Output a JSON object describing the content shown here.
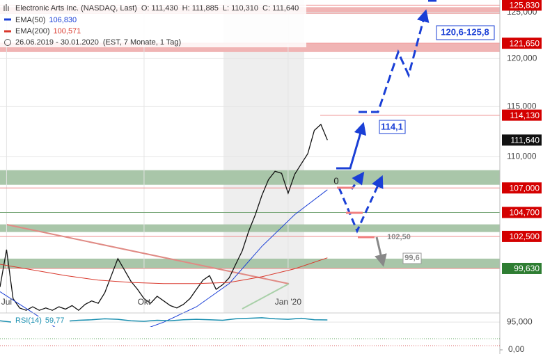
{
  "chart_data": {
    "type": "line",
    "title": "Electronic Arts Inc. (NASDAQ, Last)",
    "ohlc": [
      "O: 111,430",
      "H: 111,885",
      "L: 110,310",
      "C: 111,640"
    ],
    "period": "26.06.2019 - 30.01.2020",
    "period_note": "(EST, 7 Monate, 1 Tag)",
    "log_scale": true,
    "grid": true,
    "xlim": [
      0,
      229
    ],
    "xticks": [
      {
        "value": 3,
        "label": "Jul"
      },
      {
        "value": 66,
        "label": "Okt"
      },
      {
        "value": 132,
        "label": "Jan '20"
      }
    ],
    "ylim": [
      94600,
      126400
    ],
    "yticks": [
      {
        "value": 95000,
        "label": "95,000"
      },
      {
        "value": 110000,
        "label": "110,000"
      },
      {
        "value": 115000,
        "label": "115,000"
      },
      {
        "value": 120000,
        "label": "120,000"
      },
      {
        "value": 125000,
        "label": "125,000"
      }
    ],
    "series": [
      {
        "color": "#111111",
        "x": [
          0,
          3,
          6,
          9,
          12,
          15,
          18,
          21,
          24,
          27,
          30,
          33,
          36,
          39,
          42,
          45,
          48,
          51,
          54,
          57,
          60,
          63,
          66,
          69,
          72,
          75,
          78,
          81,
          84,
          87,
          90,
          93,
          96,
          99,
          102,
          105,
          108,
          111,
          114,
          117,
          120,
          123,
          126,
          129,
          132,
          135,
          138,
          141,
          144,
          147,
          150
        ],
        "values": [
          98000,
          101300,
          97000,
          96200,
          96000,
          96300,
          96000,
          96200,
          96000,
          96300,
          96100,
          96400,
          96000,
          96500,
          96800,
          96600,
          97500,
          99000,
          100500,
          99500,
          98500,
          97800,
          97000,
          96600,
          97200,
          96800,
          96400,
          96200,
          96500,
          97000,
          97800,
          98600,
          99000,
          97800,
          98200,
          98800,
          100000,
          101200,
          103000,
          104500,
          106300,
          107800,
          108600,
          108400,
          106500,
          108300,
          109300,
          110300,
          112600,
          113200,
          111640
        ]
      },
      {
        "name": "EMA(50)",
        "legend_value": "106,830",
        "color": "#1a3fd6",
        "x": [
          0,
          15,
          30,
          45,
          60,
          75,
          90,
          105,
          120,
          135,
          150
        ],
        "values": [
          97600,
          95800,
          94000,
          93500,
          94000,
          95000,
          96300,
          98300,
          101600,
          104500,
          106830
        ]
      },
      {
        "name": "EMA(200)",
        "legend_value": "100,571",
        "color": "#d9372b",
        "x": [
          0,
          15,
          30,
          45,
          60,
          75,
          90,
          105,
          120,
          135,
          150
        ],
        "values": [
          100000,
          99500,
          99000,
          98600,
          98400,
          98300,
          98300,
          98400,
          98900,
          99600,
          100571
        ]
      }
    ],
    "zones": [
      {
        "from": 124850,
        "to": 125600,
        "color": "#f0b4b4"
      },
      {
        "from": 120700,
        "to": 121600,
        "color": "#f0b4b4"
      },
      {
        "from": 107300,
        "to": 108700,
        "color": "#a9c6a9"
      },
      {
        "from": 102900,
        "to": 103600,
        "color": "#a9c6a9"
      },
      {
        "from": 99600,
        "to": 100500,
        "color": "#a9c6a9"
      }
    ],
    "levels": [
      {
        "value": 125830,
        "label": "125,830",
        "color": "#d40000"
      },
      {
        "value": 121650,
        "label": "121,650",
        "color": "#d40000"
      },
      {
        "value": 114130,
        "label": "114,130",
        "color": "#d40000"
      },
      {
        "value": 111640,
        "label": "111,640",
        "color": "#111111"
      },
      {
        "value": 107000,
        "label": "107,000",
        "color": "#d40000"
      },
      {
        "value": 104700,
        "label": "104,700",
        "color": "#d40000"
      },
      {
        "value": 102500,
        "label": "102,500",
        "color": "#d40000"
      },
      {
        "value": 99630,
        "label": "99,630",
        "color": "#2e7d32"
      }
    ],
    "annotations": [
      "120,6-125,8",
      "114,1",
      "0",
      "102,50",
      "99,6"
    ],
    "rsi": {
      "label": "RSI(14)",
      "value_label": "59,77",
      "color": "#1a8fb0",
      "ylim": [
        0,
        100
      ],
      "yticks": [
        {
          "value": 0,
          "label": "0,00"
        }
      ],
      "x": [
        0,
        6,
        12,
        18,
        24,
        30,
        36,
        42,
        48,
        54,
        60,
        66,
        72,
        78,
        84,
        90,
        96,
        102,
        108,
        114,
        120,
        126,
        132,
        138,
        144,
        150
      ],
      "values": [
        58,
        55,
        57,
        56,
        58,
        57,
        59,
        60,
        62,
        61,
        58,
        57,
        59,
        58,
        60,
        61,
        60,
        59,
        62,
        63,
        64,
        62,
        61,
        63,
        60,
        59.77
      ]
    }
  }
}
